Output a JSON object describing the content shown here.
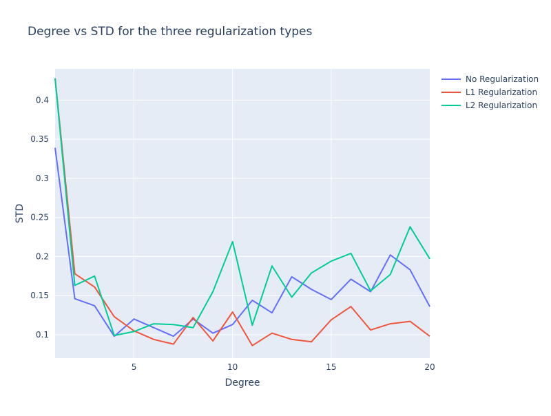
{
  "chart_data": {
    "type": "line",
    "title": "Degree vs STD for the three regularization types",
    "xlabel": "Degree",
    "ylabel": "STD",
    "xlim": [
      1,
      20
    ],
    "ylim": [
      0.07,
      0.44
    ],
    "xticks": [
      5,
      10,
      15,
      20
    ],
    "yticks": [
      0.1,
      0.15,
      0.2,
      0.25,
      0.3,
      0.35,
      0.4
    ],
    "xtick_labels": [
      "5",
      "10",
      "15",
      "20"
    ],
    "ytick_labels": [
      "0.1",
      "0.15",
      "0.2",
      "0.25",
      "0.3",
      "0.35",
      "0.4"
    ],
    "grid": true,
    "legend_position": "top-right, outside plot",
    "background": "#e5ecf6",
    "x": [
      1,
      2,
      3,
      4,
      5,
      6,
      7,
      8,
      9,
      10,
      11,
      12,
      13,
      14,
      15,
      16,
      17,
      18,
      19,
      20
    ],
    "series": [
      {
        "name": "No Regularization",
        "color": "#636efa",
        "values": [
          0.339,
          0.146,
          0.137,
          0.098,
          0.12,
          0.109,
          0.098,
          0.12,
          0.102,
          0.113,
          0.144,
          0.128,
          0.174,
          0.158,
          0.145,
          0.171,
          0.155,
          0.202,
          0.183,
          0.136
        ]
      },
      {
        "name": "L1 Regularization",
        "color": "#ef553b",
        "values": [
          0.428,
          0.178,
          0.161,
          0.123,
          0.105,
          0.094,
          0.088,
          0.122,
          0.092,
          0.129,
          0.086,
          0.102,
          0.094,
          0.091,
          0.119,
          0.136,
          0.106,
          0.114,
          0.117,
          0.098
        ]
      },
      {
        "name": "L2 Regularization",
        "color": "#00cc96",
        "values": [
          0.428,
          0.163,
          0.175,
          0.099,
          0.104,
          0.114,
          0.113,
          0.109,
          0.155,
          0.219,
          0.112,
          0.188,
          0.148,
          0.179,
          0.194,
          0.204,
          0.156,
          0.177,
          0.238,
          0.197
        ]
      }
    ]
  }
}
